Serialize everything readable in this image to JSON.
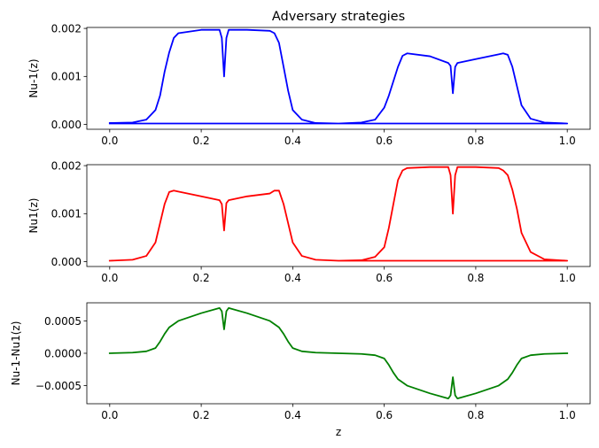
{
  "chart_data": [
    {
      "type": "line",
      "title": "Adversary strategies",
      "xlabel": "",
      "ylabel": "Nu-1(z)",
      "xlim": [
        -0.05,
        1.05
      ],
      "ylim": [
        -0.0001,
        0.00202
      ],
      "x_ticks": [
        0.0,
        0.2,
        0.4,
        0.6,
        0.8,
        1.0
      ],
      "x_tick_labels": [
        "0.0",
        "0.2",
        "0.4",
        "0.6",
        "0.8",
        "1.0"
      ],
      "y_ticks": [
        0.0,
        0.001,
        0.002
      ],
      "y_tick_labels": [
        "0.000",
        "0.001",
        "0.002"
      ],
      "grid": false,
      "series": [
        {
          "color": "#0000ff",
          "x": [
            0.0,
            0.05,
            0.08,
            0.1,
            0.11,
            0.12,
            0.13,
            0.14,
            0.15,
            0.2,
            0.24,
            0.245,
            0.25,
            0.255,
            0.26,
            0.3,
            0.35,
            0.36,
            0.37,
            0.38,
            0.39,
            0.4,
            0.42,
            0.45,
            0.5,
            0.55,
            0.58,
            0.6,
            0.61,
            0.62,
            0.63,
            0.64,
            0.65,
            0.7,
            0.74,
            0.745,
            0.75,
            0.755,
            0.76,
            0.8,
            0.85,
            0.86,
            0.87,
            0.88,
            0.89,
            0.9,
            0.92,
            0.95,
            1.0,
            0.5,
            0.0
          ],
          "y": [
            3e-05,
            4e-05,
            0.0001,
            0.0003,
            0.0006,
            0.0011,
            0.0015,
            0.0018,
            0.0019,
            0.00197,
            0.00197,
            0.0018,
            0.001,
            0.0018,
            0.00197,
            0.00197,
            0.00195,
            0.0019,
            0.0017,
            0.0012,
            0.0007,
            0.0003,
            0.0001,
            3e-05,
            2e-05,
            4e-05,
            0.0001,
            0.00035,
            0.0006,
            0.0009,
            0.0012,
            0.00143,
            0.00148,
            0.00142,
            0.00128,
            0.00122,
            0.00065,
            0.0012,
            0.00128,
            0.00136,
            0.00146,
            0.00148,
            0.00145,
            0.0012,
            0.0008,
            0.0004,
            0.00012,
            4e-05,
            2e-05,
            2e-05,
            2e-05
          ]
        }
      ]
    },
    {
      "type": "line",
      "title": "",
      "xlabel": "",
      "ylabel": "Nu1(z)",
      "xlim": [
        -0.05,
        1.05
      ],
      "ylim": [
        -0.0001,
        0.00202
      ],
      "x_ticks": [
        0.0,
        0.2,
        0.4,
        0.6,
        0.8,
        1.0
      ],
      "x_tick_labels": [
        "0.0",
        "0.2",
        "0.4",
        "0.6",
        "0.8",
        "1.0"
      ],
      "y_ticks": [
        0.0,
        0.001,
        0.002
      ],
      "y_tick_labels": [
        "0.000",
        "0.001",
        "0.002"
      ],
      "grid": false,
      "series": [
        {
          "color": "#ff0000",
          "x": [
            0.0,
            0.05,
            0.08,
            0.1,
            0.11,
            0.12,
            0.13,
            0.14,
            0.15,
            0.2,
            0.24,
            0.245,
            0.25,
            0.255,
            0.26,
            0.3,
            0.35,
            0.36,
            0.37,
            0.38,
            0.39,
            0.4,
            0.42,
            0.45,
            0.5,
            0.55,
            0.58,
            0.6,
            0.61,
            0.62,
            0.63,
            0.64,
            0.65,
            0.7,
            0.74,
            0.745,
            0.75,
            0.755,
            0.76,
            0.8,
            0.85,
            0.86,
            0.87,
            0.88,
            0.89,
            0.9,
            0.92,
            0.95,
            1.0,
            0.5
          ],
          "y": [
            2e-05,
            4e-05,
            0.00012,
            0.0004,
            0.0008,
            0.0012,
            0.00145,
            0.00148,
            0.00146,
            0.00136,
            0.00128,
            0.0012,
            0.00065,
            0.00122,
            0.00128,
            0.00136,
            0.00142,
            0.00148,
            0.00148,
            0.0012,
            0.0008,
            0.0004,
            0.00012,
            4e-05,
            2e-05,
            3e-05,
            0.0001,
            0.0003,
            0.0007,
            0.0012,
            0.0017,
            0.0019,
            0.00195,
            0.00197,
            0.00197,
            0.0018,
            0.001,
            0.0018,
            0.00197,
            0.00197,
            0.00195,
            0.0019,
            0.0018,
            0.0015,
            0.0011,
            0.0006,
            0.0002,
            5e-05,
            2e-05,
            2e-05
          ]
        }
      ]
    },
    {
      "type": "line",
      "title": "",
      "xlabel": "z",
      "ylabel": "Nu-1-Nu1(z)",
      "xlim": [
        -0.05,
        1.05
      ],
      "ylim": [
        -0.00078,
        0.00078
      ],
      "x_ticks": [
        0.0,
        0.2,
        0.4,
        0.6,
        0.8,
        1.0
      ],
      "x_tick_labels": [
        "0.0",
        "0.2",
        "0.4",
        "0.6",
        "0.8",
        "1.0"
      ],
      "y_ticks": [
        -0.0005,
        0.0,
        0.0005
      ],
      "y_tick_labels": [
        "−0.0005",
        "0.0000",
        "0.0005"
      ],
      "grid": false,
      "series": [
        {
          "color": "#008000",
          "x": [
            0.0,
            0.05,
            0.08,
            0.1,
            0.11,
            0.12,
            0.13,
            0.15,
            0.2,
            0.24,
            0.245,
            0.25,
            0.255,
            0.26,
            0.3,
            0.35,
            0.37,
            0.38,
            0.39,
            0.4,
            0.42,
            0.45,
            0.5,
            0.55,
            0.58,
            0.6,
            0.61,
            0.62,
            0.63,
            0.65,
            0.7,
            0.74,
            0.745,
            0.75,
            0.755,
            0.76,
            0.8,
            0.85,
            0.87,
            0.88,
            0.89,
            0.9,
            0.92,
            0.95,
            1.0
          ],
          "y": [
            0.0,
            1e-05,
            3e-05,
            8e-05,
            0.00018,
            0.0003,
            0.0004,
            0.0005,
            0.00062,
            0.0007,
            0.00065,
            0.00037,
            0.00065,
            0.0007,
            0.00062,
            0.0005,
            0.0004,
            0.0003,
            0.00018,
            8e-05,
            3e-05,
            1e-05,
            0.0,
            -1e-05,
            -3e-05,
            -8e-05,
            -0.00018,
            -0.0003,
            -0.0004,
            -0.0005,
            -0.00062,
            -0.0007,
            -0.00065,
            -0.00037,
            -0.00065,
            -0.0007,
            -0.00062,
            -0.0005,
            -0.0004,
            -0.0003,
            -0.00018,
            -8e-05,
            -3e-05,
            -1e-05,
            0.0
          ]
        }
      ]
    }
  ]
}
